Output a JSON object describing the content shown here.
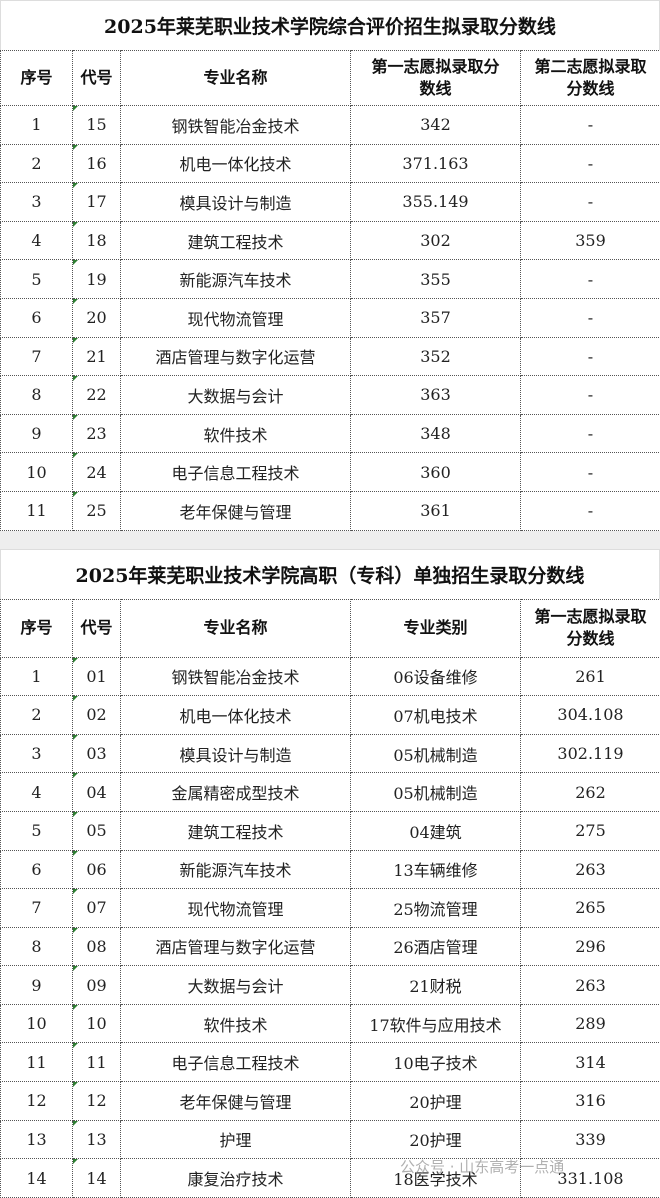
{
  "table1": {
    "title": "2025年莱芜职业技术学院综合评价招生拟录取分数线",
    "headers": [
      "序号",
      "代号",
      "专业名称",
      "第一志愿拟录取分数线",
      "第二志愿拟录取分数线"
    ],
    "rows": [
      [
        "1",
        "15",
        "钢铁智能冶金技术",
        "342",
        "-"
      ],
      [
        "2",
        "16",
        "机电一体化技术",
        "371.163",
        "-"
      ],
      [
        "3",
        "17",
        "模具设计与制造",
        "355.149",
        "-"
      ],
      [
        "4",
        "18",
        "建筑工程技术",
        "302",
        "359"
      ],
      [
        "5",
        "19",
        "新能源汽车技术",
        "355",
        "-"
      ],
      [
        "6",
        "20",
        "现代物流管理",
        "357",
        "-"
      ],
      [
        "7",
        "21",
        "酒店管理与数字化运营",
        "352",
        "-"
      ],
      [
        "8",
        "22",
        "大数据与会计",
        "363",
        "-"
      ],
      [
        "9",
        "23",
        "软件技术",
        "348",
        "-"
      ],
      [
        "10",
        "24",
        "电子信息工程技术",
        "360",
        "-"
      ],
      [
        "11",
        "25",
        "老年保健与管理",
        "361",
        "-"
      ]
    ]
  },
  "table2": {
    "title": "2025年莱芜职业技术学院高职（专科）单独招生录取分数线",
    "headers": [
      "序号",
      "代号",
      "专业名称",
      "专业类别",
      "第一志愿拟录取分数线"
    ],
    "rows": [
      [
        "1",
        "01",
        "钢铁智能冶金技术",
        "06设备维修",
        "261"
      ],
      [
        "2",
        "02",
        "机电一体化技术",
        "07机电技术",
        "304.108"
      ],
      [
        "3",
        "03",
        "模具设计与制造",
        "05机械制造",
        "302.119"
      ],
      [
        "4",
        "04",
        "金属精密成型技术",
        "05机械制造",
        "262"
      ],
      [
        "5",
        "05",
        "建筑工程技术",
        "04建筑",
        "275"
      ],
      [
        "6",
        "06",
        "新能源汽车技术",
        "13车辆维修",
        "263"
      ],
      [
        "7",
        "07",
        "现代物流管理",
        "25物流管理",
        "265"
      ],
      [
        "8",
        "08",
        "酒店管理与数字化运营",
        "26酒店管理",
        "296"
      ],
      [
        "9",
        "09",
        "大数据与会计",
        "21财税",
        "263"
      ],
      [
        "10",
        "10",
        "软件技术",
        "17软件与应用技术",
        "289"
      ],
      [
        "11",
        "11",
        "电子信息工程技术",
        "10电子技术",
        "314"
      ],
      [
        "12",
        "12",
        "老年保健与管理",
        "20护理",
        "316"
      ],
      [
        "13",
        "13",
        "护理",
        "20护理",
        "339"
      ],
      [
        "14",
        "14",
        "康复治疗技术",
        "18医学技术",
        "331.108"
      ]
    ]
  },
  "watermark": "公众号 · 山东高考一点通"
}
